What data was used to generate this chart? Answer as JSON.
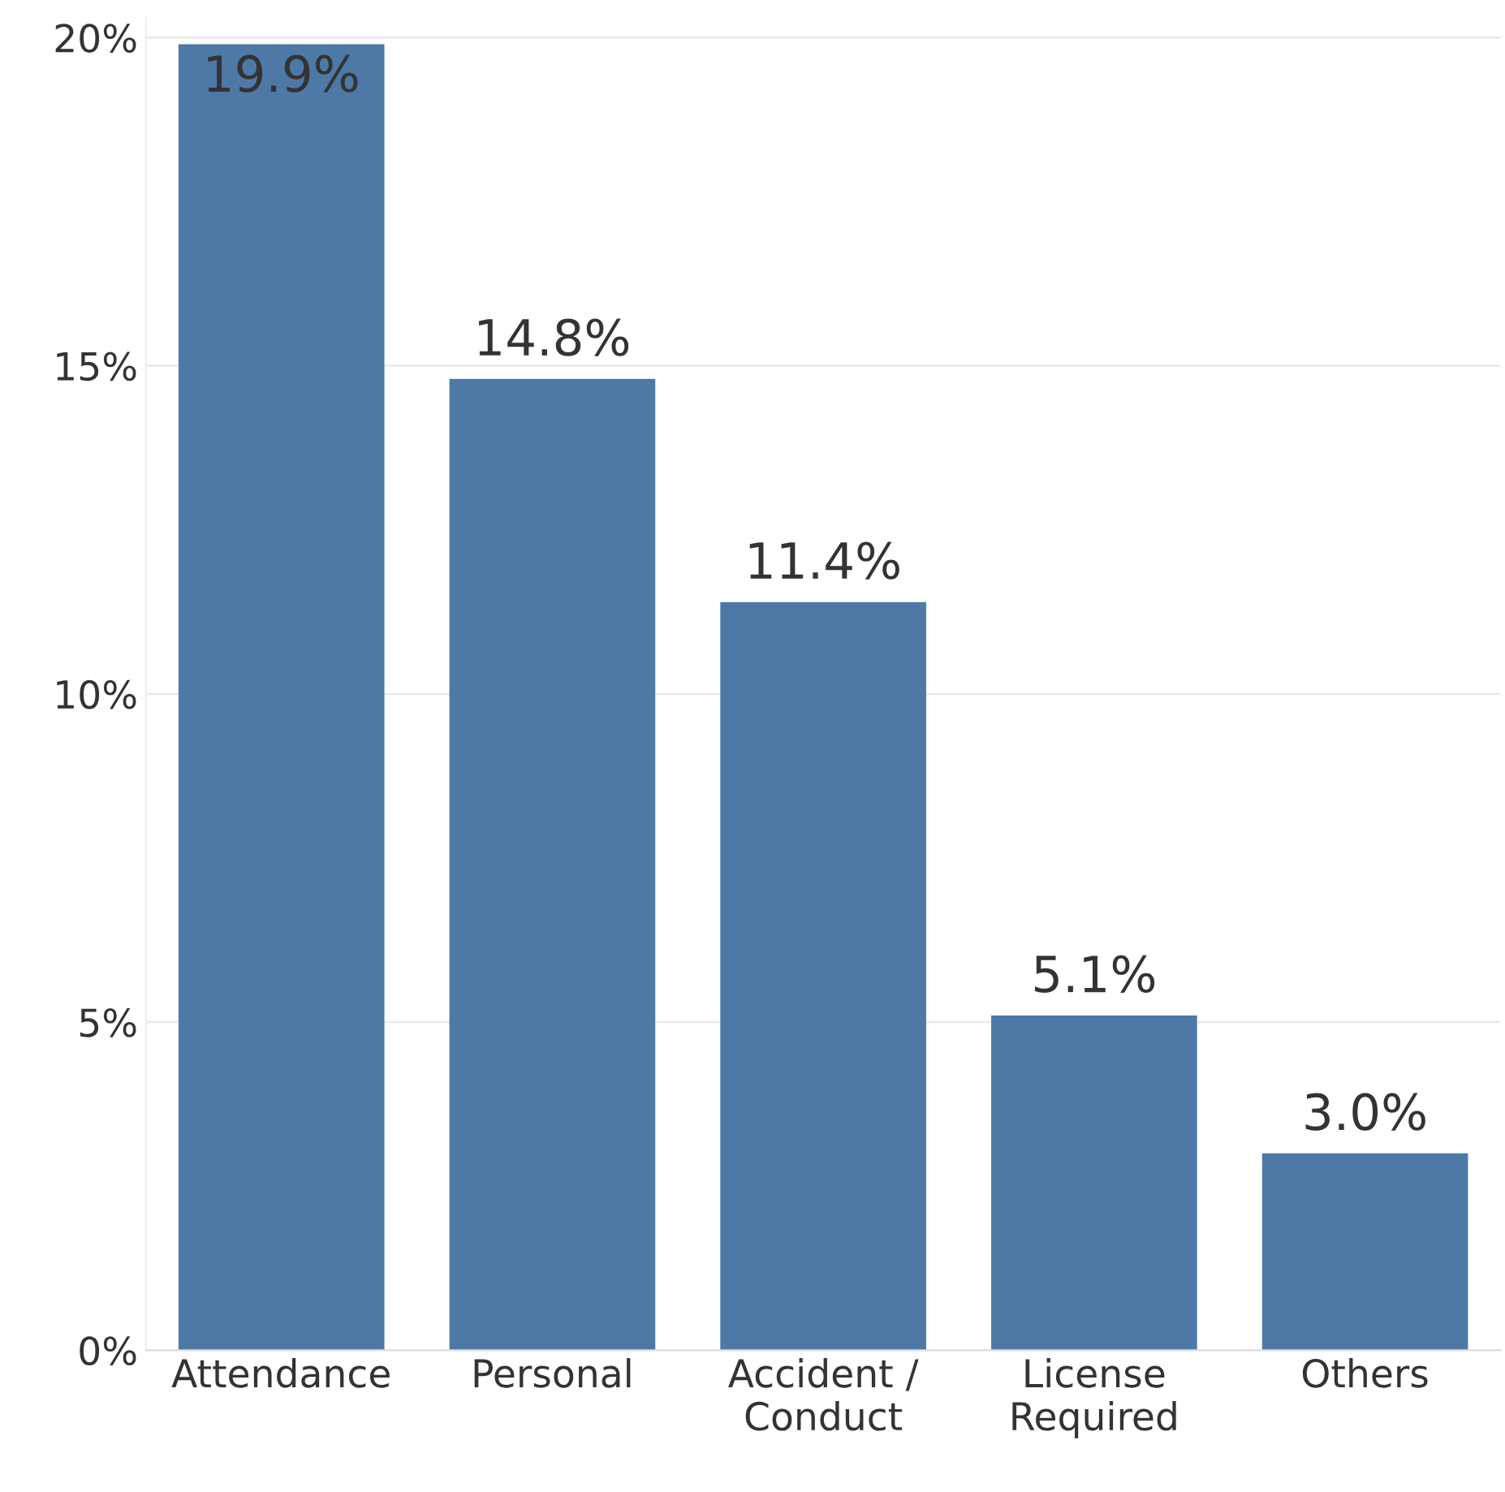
{
  "chart_data": {
    "type": "bar",
    "categories": [
      "Attendance",
      "Personal",
      "Accident /\nConduct",
      "License\nRequired",
      "Others"
    ],
    "values": [
      19.9,
      14.8,
      11.4,
      5.1,
      3.0
    ],
    "value_labels": [
      "19.9%",
      "14.8%",
      "11.4%",
      "5.1%",
      "3.0%"
    ],
    "color": "#4e79a7",
    "ylim": [
      0,
      20.3
    ],
    "yticks": [
      {
        "value": 0,
        "label": "0%"
      },
      {
        "value": 5,
        "label": "5%"
      },
      {
        "value": 10,
        "label": "10%"
      },
      {
        "value": 15,
        "label": "15%"
      },
      {
        "value": 20,
        "label": "20%"
      }
    ],
    "grid": "y"
  }
}
